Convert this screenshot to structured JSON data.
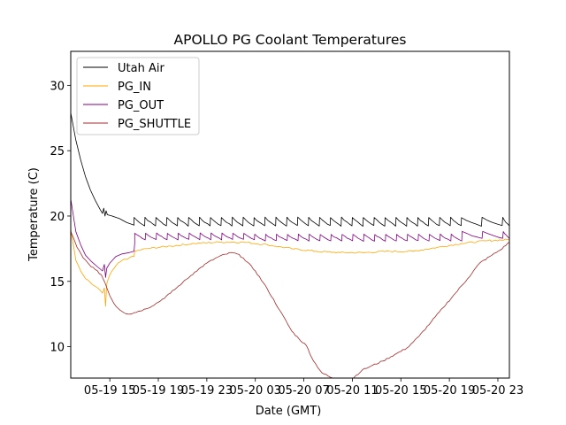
{
  "chart_data": {
    "type": "line",
    "title": "APOLLO PG Coolant Temperatures",
    "xlabel": "Date (GMT)",
    "ylabel": "Temperature (C)",
    "x_units": "hours since 05-19 12:00 GMT",
    "xlim": [
      -0.22,
      35.95
    ],
    "ylim": [
      7.6,
      32.6
    ],
    "x_ticks": [
      {
        "value": 3,
        "label": "05-19 15"
      },
      {
        "value": 7,
        "label": "05-19 19"
      },
      {
        "value": 11,
        "label": "05-19 23"
      },
      {
        "value": 15,
        "label": "05-20 03"
      },
      {
        "value": 19,
        "label": "05-20 07"
      },
      {
        "value": 23,
        "label": "05-20 11"
      },
      {
        "value": 27,
        "label": "05-20 15"
      },
      {
        "value": 31,
        "label": "05-20 19"
      },
      {
        "value": 35,
        "label": "05-20 23"
      }
    ],
    "y_ticks": [
      {
        "value": 10,
        "label": "10"
      },
      {
        "value": 15,
        "label": "15"
      },
      {
        "value": 20,
        "label": "20"
      },
      {
        "value": 25,
        "label": "25"
      },
      {
        "value": 30,
        "label": "30"
      }
    ],
    "grid": false,
    "legend_position": "top-left",
    "series": [
      {
        "name": "Utah Air",
        "color": "#000000",
        "pattern": "sawtooth",
        "x": [
          -0.22,
          0.2,
          0.6,
          1.0,
          1.4,
          1.8,
          2.2,
          2.4,
          2.5,
          2.6,
          2.7,
          2.8,
          3.2,
          3.8,
          4.4,
          5.0
        ],
        "values": [
          27.9,
          25.8,
          24.3,
          23.0,
          22.0,
          21.2,
          20.5,
          20.2,
          20.6,
          20.0,
          20.4,
          20.1,
          20.0,
          19.8,
          19.5,
          19.3
        ],
        "sawtooth": {
          "start": 5.0,
          "end": 35.95,
          "period": 0.9,
          "low": 19.25,
          "high": 19.9,
          "end_period": 1.7
        }
      },
      {
        "name": "PG_IN",
        "color": "#FFA500",
        "x": [
          -0.22,
          0.2,
          0.6,
          1.0,
          1.5,
          2.0,
          2.4,
          2.55,
          2.65,
          2.75,
          3.0,
          3.5,
          4.0,
          4.6,
          5.0,
          5.05,
          6.0,
          8.0,
          10.0,
          12.0,
          14.0,
          16.0,
          18.0,
          20.0,
          22.0,
          24.0,
          26.0,
          28.0,
          30.0,
          32.0,
          34.0,
          35.95
        ],
        "values": [
          19.0,
          16.6,
          15.8,
          15.2,
          14.8,
          14.5,
          14.1,
          14.5,
          13.1,
          14.8,
          15.5,
          16.2,
          16.6,
          16.8,
          16.9,
          17.3,
          17.5,
          17.7,
          17.9,
          18.0,
          18.0,
          17.8,
          17.5,
          17.3,
          17.2,
          17.2,
          17.3,
          17.3,
          17.6,
          17.9,
          18.1,
          18.2
        ]
      },
      {
        "name": "PG_OUT",
        "color": "#800080",
        "pattern": "sawtooth",
        "x": [
          -0.22,
          0.2,
          0.6,
          1.0,
          1.5,
          2.0,
          2.4,
          2.55,
          2.65,
          2.75,
          3.0,
          3.5,
          4.0,
          4.6,
          5.0,
          5.05
        ],
        "values": [
          21.3,
          18.8,
          17.8,
          17.0,
          16.5,
          16.1,
          15.8,
          16.3,
          15.3,
          16.0,
          16.4,
          16.9,
          17.1,
          17.2,
          17.3,
          17.9
        ],
        "sawtooth": {
          "start": 5.05,
          "end": 35.95,
          "period": 0.9,
          "low": 18.1,
          "high": 18.6,
          "end_period": 1.7
        }
      },
      {
        "name": "PG_SHUTTLE",
        "color": "#A52A2A",
        "x": [
          -0.22,
          0.3,
          0.8,
          1.3,
          1.8,
          2.3,
          2.6,
          3.0,
          3.5,
          4.0,
          4.5,
          5.0,
          6.0,
          7.0,
          8.0,
          9.0,
          10.0,
          11.0,
          12.0,
          13.0,
          13.5,
          14.0,
          15.0,
          16.0,
          17.0,
          18.0,
          18.6,
          19.2,
          19.8,
          20.5,
          21.5,
          22.5,
          23.0,
          23.3,
          23.8,
          24.5,
          25.5,
          26.5,
          27.5,
          28.5,
          29.5,
          30.5,
          31.5,
          32.5,
          33.5,
          34.5,
          35.2,
          35.95
        ],
        "values": [
          18.8,
          17.6,
          16.8,
          16.3,
          15.9,
          15.5,
          14.9,
          13.9,
          13.1,
          12.7,
          12.5,
          12.6,
          12.9,
          13.4,
          14.1,
          14.9,
          15.7,
          16.4,
          16.9,
          17.2,
          17.1,
          16.8,
          15.8,
          14.4,
          12.8,
          11.2,
          10.6,
          10.1,
          8.9,
          8.0,
          7.5,
          7.4,
          7.5,
          7.8,
          8.2,
          8.5,
          8.9,
          9.4,
          9.9,
          10.8,
          11.9,
          13.0,
          14.1,
          15.2,
          16.4,
          17.0,
          17.4,
          18.0
        ]
      }
    ]
  }
}
